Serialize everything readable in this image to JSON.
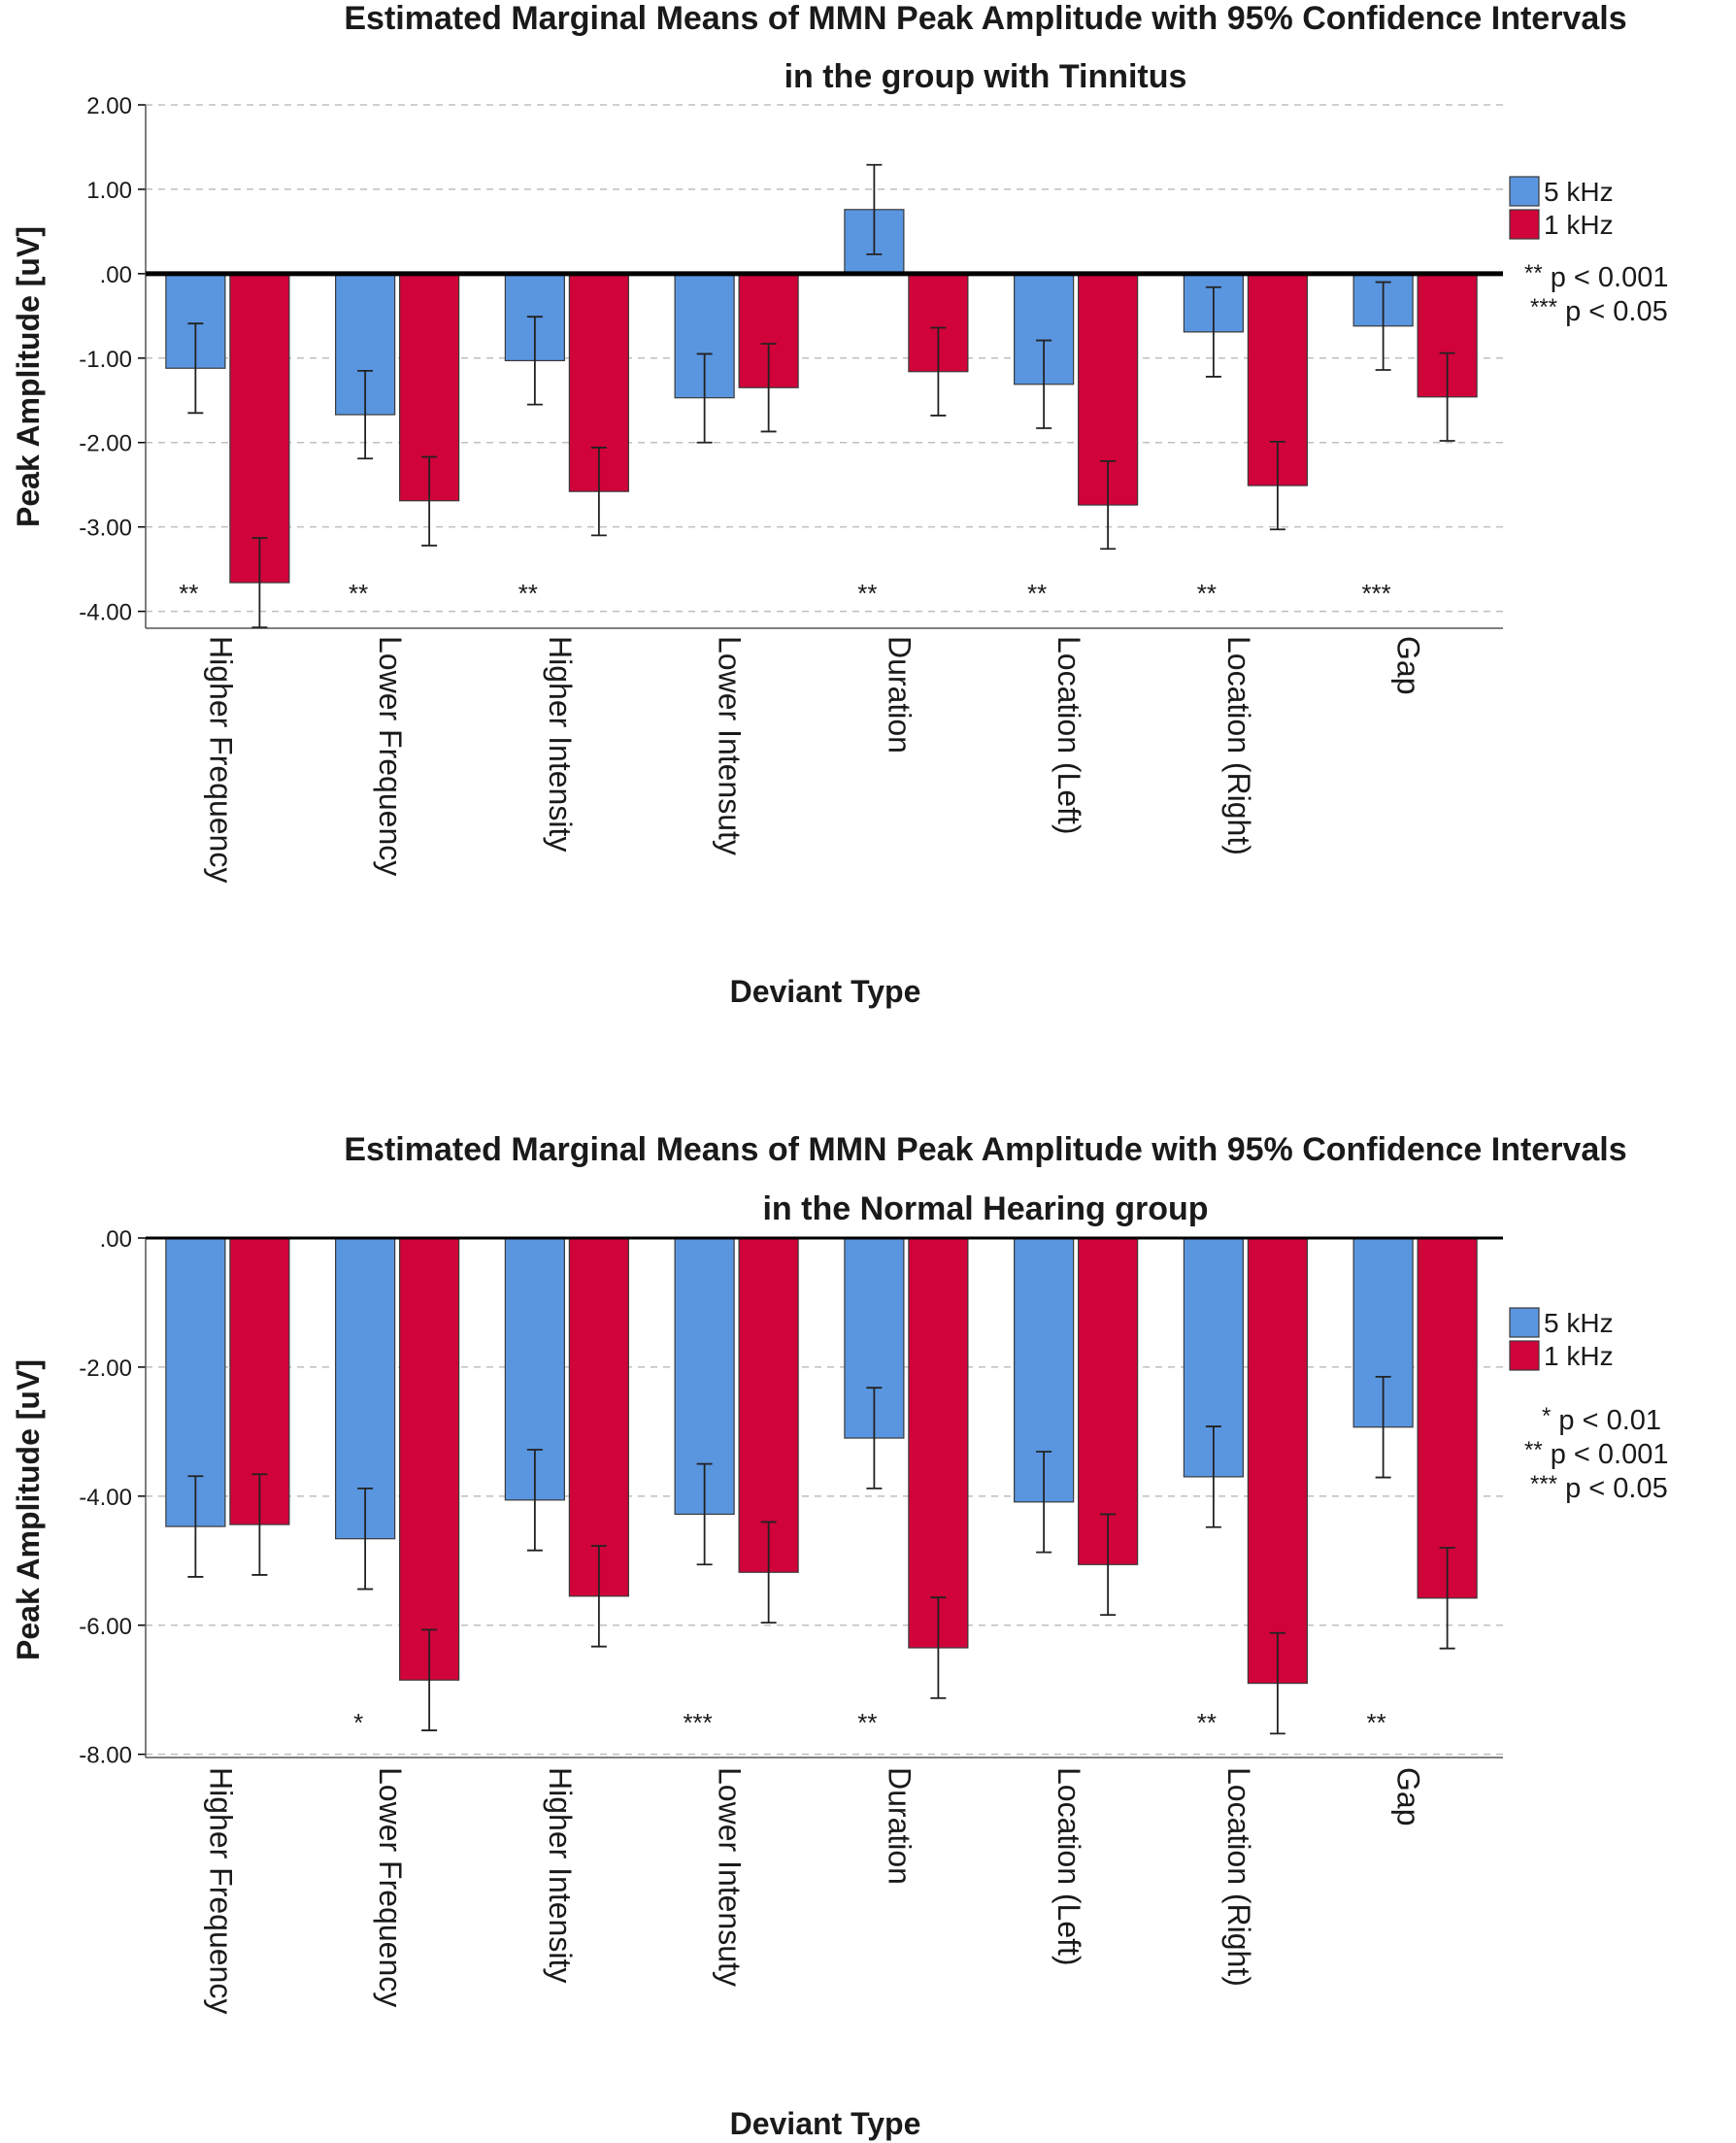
{
  "colors": {
    "series_5khz": "#5A96E0",
    "series_1khz": "#D0033A",
    "grid": "#bfbfbf",
    "axis": "#000000"
  },
  "chart_data": [
    {
      "type": "bar",
      "title_line1": "Estimated Marginal Means of MMN Peak Amplitude with 95% Confidence Intervals",
      "title_line2": "in the group with Tinnitus",
      "xlabel": "Deviant Type",
      "ylabel": "Peak Amplitude [uV]",
      "ylim": [
        -4.2,
        2.0
      ],
      "yticks": [
        2.0,
        1.0,
        0.0,
        -1.0,
        -2.0,
        -3.0,
        -4.0
      ],
      "ytick_labels": [
        "2.00",
        "1.00",
        ".00",
        "-1.00",
        "-2.00",
        "-3.00",
        "-4.00"
      ],
      "categories": [
        "Higher Frequency",
        "Lower Frequency",
        "Higher Intensity",
        "Lower Intensuty",
        "Duration",
        "Location (Left)",
        "Location (Right)",
        "Gap"
      ],
      "series": [
        {
          "name": "5 kHz",
          "values": [
            -1.12,
            -1.67,
            -1.03,
            -1.47,
            0.76,
            -1.31,
            -0.69,
            -0.62
          ],
          "ci_low": [
            -1.65,
            -2.19,
            -1.55,
            -2.0,
            0.23,
            -1.83,
            -1.22,
            -1.14
          ],
          "ci_high": [
            -0.59,
            -1.15,
            -0.51,
            -0.95,
            1.29,
            -0.79,
            -0.16,
            -0.1
          ]
        },
        {
          "name": "1 kHz",
          "values": [
            -3.66,
            -2.69,
            -2.58,
            -1.35,
            -1.16,
            -2.74,
            -2.51,
            -1.46
          ],
          "ci_low": [
            -4.19,
            -3.22,
            -3.1,
            -1.87,
            -1.68,
            -3.26,
            -3.03,
            -1.98
          ],
          "ci_high": [
            -3.13,
            -2.17,
            -2.06,
            -0.83,
            -0.64,
            -2.22,
            -1.99,
            -0.94
          ]
        }
      ],
      "significance": [
        "**",
        "**",
        "**",
        "",
        "**",
        "**",
        "**",
        "***"
      ],
      "legend_position": "right",
      "notes": [
        {
          "stars": "**",
          "text": "p < 0.001"
        },
        {
          "stars": "***",
          "text": "p < 0.05"
        }
      ]
    },
    {
      "type": "bar",
      "title_line1": "Estimated Marginal Means of MMN Peak Amplitude with 95% Confidence Intervals",
      "title_line2": "in the Normal Hearing group",
      "xlabel": "Deviant Type",
      "ylabel": "Peak Amplitude [uV]",
      "ylim": [
        -8.05,
        0.0
      ],
      "yticks": [
        0.0,
        -2.0,
        -4.0,
        -6.0,
        -8.0
      ],
      "ytick_labels": [
        ".00",
        "-2.00",
        "-4.00",
        "-6.00",
        "-8.00"
      ],
      "categories": [
        "Higher Frequency",
        "Lower Frequency",
        "Higher Intensity",
        "Lower Intensuty",
        "Duration",
        "Location (Left)",
        "Location (Right)",
        "Gap"
      ],
      "series": [
        {
          "name": "5 kHz",
          "values": [
            -4.47,
            -4.66,
            -4.06,
            -4.28,
            -3.1,
            -4.09,
            -3.7,
            -2.93
          ],
          "ci_low": [
            -5.25,
            -5.44,
            -4.84,
            -5.06,
            -3.88,
            -4.87,
            -4.48,
            -3.71
          ],
          "ci_high": [
            -3.69,
            -3.88,
            -3.28,
            -3.5,
            -2.32,
            -3.31,
            -2.92,
            -2.15
          ]
        },
        {
          "name": "1 kHz",
          "values": [
            -4.44,
            -6.85,
            -5.55,
            -5.18,
            -6.35,
            -5.06,
            -6.9,
            -5.58
          ],
          "ci_low": [
            -5.22,
            -7.63,
            -6.33,
            -5.96,
            -7.13,
            -5.84,
            -7.68,
            -6.36
          ],
          "ci_high": [
            -3.66,
            -6.07,
            -4.77,
            -4.4,
            -5.57,
            -4.28,
            -6.12,
            -4.8
          ]
        }
      ],
      "significance": [
        "",
        "*",
        "",
        "***",
        "**",
        "",
        "**",
        "**"
      ],
      "legend_position": "right",
      "notes": [
        {
          "stars": "*",
          "text": "p < 0.01"
        },
        {
          "stars": "**",
          "text": "p < 0.001"
        },
        {
          "stars": "***",
          "text": "p < 0.05"
        }
      ]
    }
  ]
}
